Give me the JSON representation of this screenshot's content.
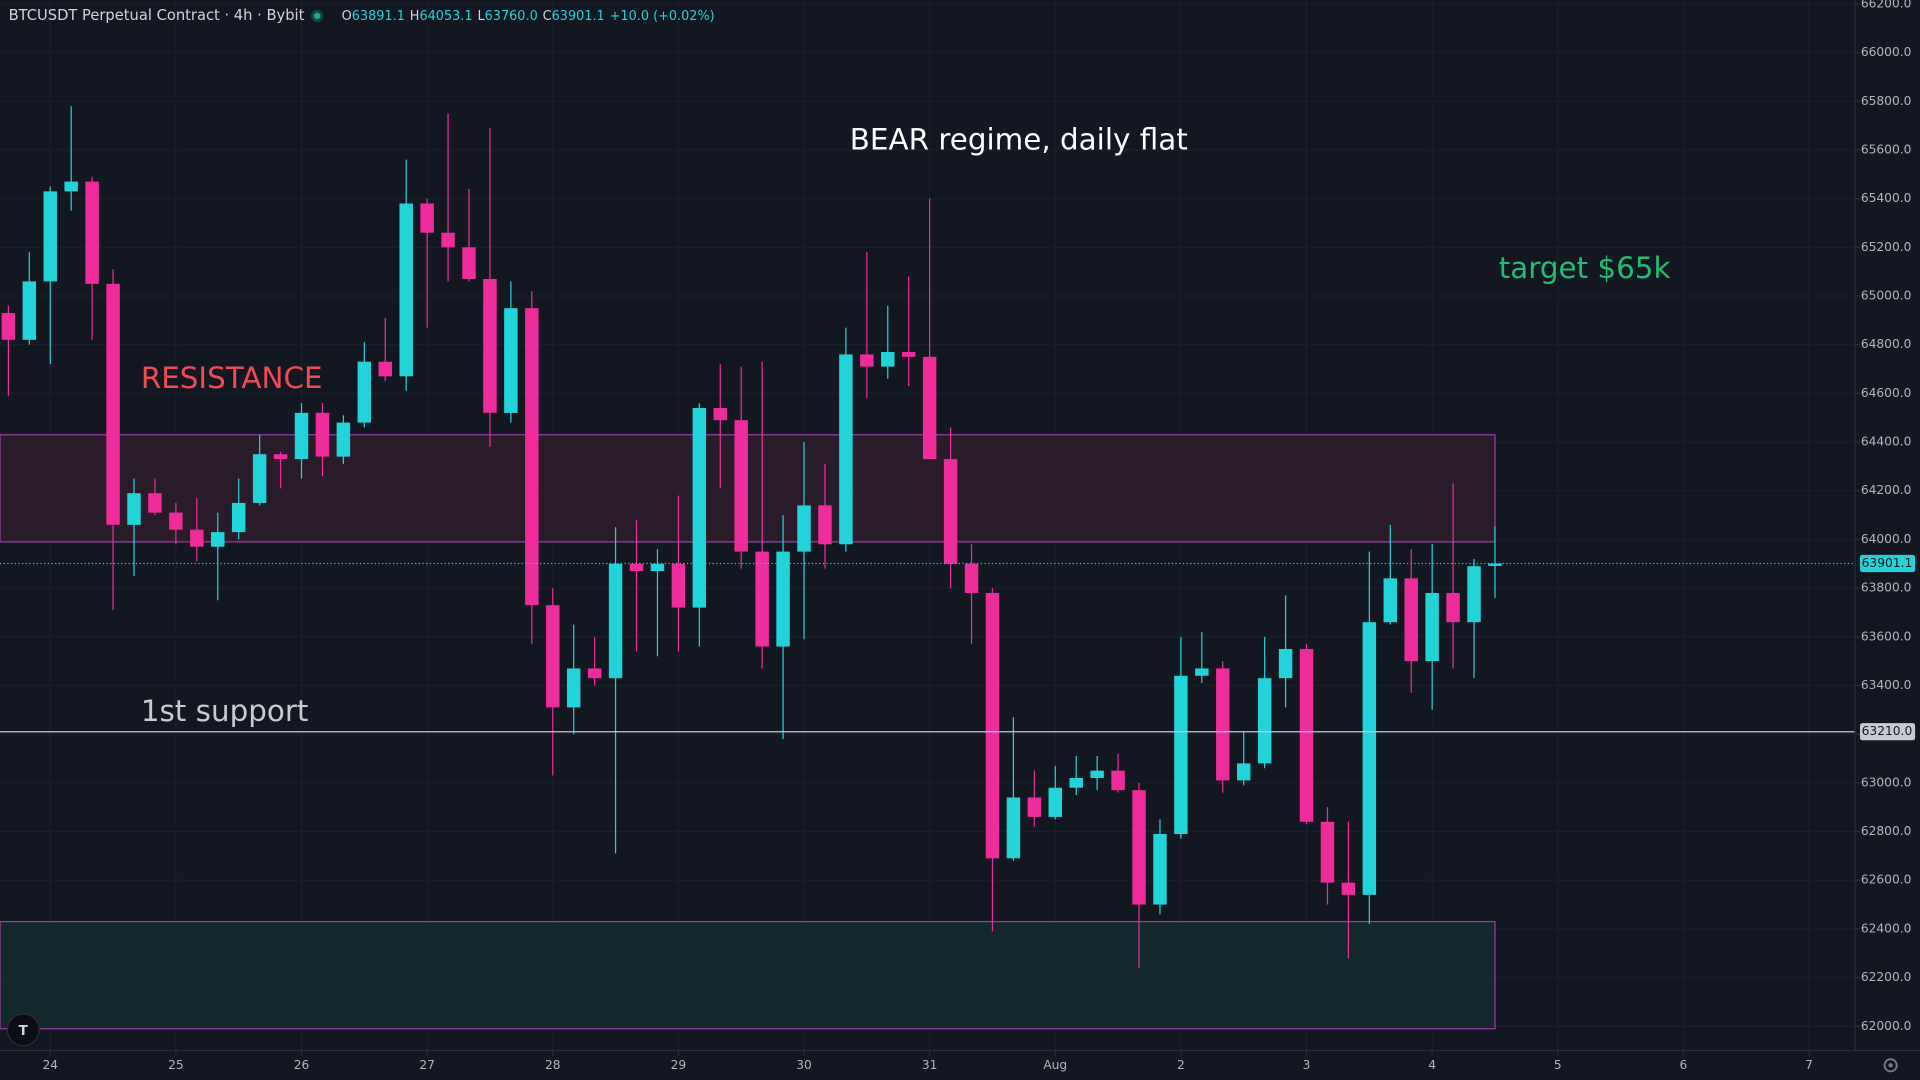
{
  "chart_data": {
    "type": "candlestick",
    "title": "BTCUSDT Perpetual Contract · 4h · Bybit",
    "header": {
      "items": [
        {
          "key": "O",
          "value": "63891.1"
        },
        {
          "key": "H",
          "value": "64053.1"
        },
        {
          "key": "L",
          "value": "63760.0"
        },
        {
          "key": "C",
          "value": "63901.1"
        }
      ],
      "change": "+10.0 (+0.02%)"
    },
    "up_color": "#22d3da",
    "down_color": "#ee2c9c",
    "grid": true,
    "x": [
      -8,
      -4,
      0,
      4,
      8,
      12,
      16,
      20,
      24,
      28,
      32,
      36,
      40,
      44,
      48,
      52,
      56,
      60,
      64,
      68,
      72,
      76,
      80,
      84,
      88,
      92,
      96,
      100,
      104,
      108,
      112,
      116,
      120,
      124,
      128,
      132,
      136,
      140,
      144,
      148,
      152,
      156,
      160,
      164,
      168,
      172,
      176,
      180,
      184,
      188,
      192,
      196,
      200,
      204,
      208,
      212,
      216,
      220,
      224,
      228,
      232,
      236,
      240,
      244,
      248,
      252,
      256,
      260,
      264,
      268,
      272,
      276
    ],
    "open": [
      64930,
      64820,
      65060,
      65430,
      65470,
      65050,
      64060,
      64190,
      64110,
      64040,
      63970,
      64030,
      64150,
      64350,
      64330,
      64520,
      64340,
      64480,
      64730,
      64670,
      65380,
      65260,
      65200,
      65070,
      64520,
      64950,
      63730,
      63310,
      63470,
      63430,
      63900,
      63870,
      63900,
      63720,
      64540,
      64490,
      63950,
      63560,
      63950,
      64140,
      63980,
      64760,
      64710,
      64770,
      64750,
      64330,
      63900,
      63780,
      62690,
      62940,
      62860,
      62980,
      63020,
      63050,
      62970,
      62500,
      62790,
      63440,
      63470,
      63010,
      63080,
      63430,
      63550,
      62840,
      62590,
      62540,
      63660,
      63840,
      63500,
      63780,
      63660,
      63891.1
    ],
    "high": [
      64960,
      65180,
      65450,
      65780,
      65490,
      65110,
      64250,
      64250,
      64150,
      64170,
      64110,
      64250,
      64430,
      64360,
      64560,
      64560,
      64510,
      64810,
      64910,
      65560,
      65400,
      65750,
      65440,
      65690,
      65060,
      65020,
      63800,
      63650,
      63600,
      64050,
      64080,
      63960,
      64180,
      64560,
      64720,
      64710,
      64730,
      64100,
      64400,
      64310,
      64870,
      65180,
      64960,
      65080,
      65400,
      64460,
      63980,
      63800,
      63270,
      63050,
      63070,
      63110,
      63110,
      63120,
      63000,
      62850,
      63600,
      63620,
      63500,
      63210,
      63600,
      63770,
      63570,
      62900,
      62840,
      63950,
      64060,
      63960,
      63980,
      64230,
      63920,
      64053.1
    ],
    "low": [
      64590,
      64800,
      64720,
      65350,
      64820,
      63710,
      63850,
      64100,
      63980,
      63910,
      63750,
      64000,
      64140,
      64210,
      64250,
      64260,
      64310,
      64460,
      64650,
      64610,
      64870,
      65060,
      65060,
      64380,
      64480,
      63570,
      63030,
      63200,
      63400,
      62710,
      63540,
      63520,
      63540,
      63560,
      64210,
      63880,
      63470,
      63180,
      63590,
      63880,
      63950,
      64580,
      64660,
      64630,
      64330,
      63800,
      63570,
      62390,
      62680,
      62820,
      62850,
      62950,
      62970,
      62960,
      62240,
      62460,
      62770,
      63410,
      62960,
      62990,
      63060,
      63310,
      62830,
      62500,
      62280,
      62420,
      63650,
      63370,
      63300,
      63470,
      63430,
      63760
    ],
    "close": [
      64820,
      65060,
      65430,
      65470,
      65050,
      64060,
      64190,
      64110,
      64040,
      63970,
      64030,
      64150,
      64350,
      64330,
      64520,
      64340,
      64480,
      64730,
      64670,
      65380,
      65260,
      65200,
      65070,
      64520,
      64950,
      63730,
      63310,
      63470,
      63430,
      63900,
      63870,
      63900,
      63720,
      64540,
      64490,
      63950,
      63560,
      63950,
      64140,
      63980,
      64760,
      64710,
      64770,
      64750,
      64330,
      63900,
      63780,
      62690,
      62940,
      62860,
      62980,
      63020,
      63050,
      62970,
      62500,
      62790,
      63440,
      63470,
      63010,
      63080,
      63430,
      63550,
      62840,
      62590,
      62540,
      63660,
      63840,
      63500,
      63780,
      63660,
      63890,
      63901.1
    ],
    "xlim": [
      -9.6,
      344.8
    ],
    "xticks": [
      {
        "value": 0,
        "label": "24"
      },
      {
        "value": 24,
        "label": "25"
      },
      {
        "value": 48,
        "label": "26"
      },
      {
        "value": 72,
        "label": "27"
      },
      {
        "value": 96,
        "label": "28"
      },
      {
        "value": 120,
        "label": "29"
      },
      {
        "value": 144,
        "label": "30"
      },
      {
        "value": 168,
        "label": "31"
      },
      {
        "value": 192,
        "label": "Aug"
      },
      {
        "value": 216,
        "label": "2"
      },
      {
        "value": 240,
        "label": "3"
      },
      {
        "value": 264,
        "label": "4"
      },
      {
        "value": 288,
        "label": "5"
      },
      {
        "value": 312,
        "label": "6"
      },
      {
        "value": 336,
        "label": "7"
      }
    ],
    "ylim": [
      61900,
      66216
    ],
    "yticks": [
      {
        "value": 62000,
        "label": "62000.0"
      },
      {
        "value": 62200,
        "label": "62200.0"
      },
      {
        "value": 62400,
        "label": "62400.0"
      },
      {
        "value": 62600,
        "label": "62600.0"
      },
      {
        "value": 62800,
        "label": "62800.0"
      },
      {
        "value": 63000,
        "label": "63000.0"
      },
      {
        "value": 63200,
        "label": "63200.0"
      },
      {
        "value": 63400,
        "label": "63400.0"
      },
      {
        "value": 63600,
        "label": "63600.0"
      },
      {
        "value": 63800,
        "label": "63800.0"
      },
      {
        "value": 64000,
        "label": "64000.0"
      },
      {
        "value": 64200,
        "label": "64200.0"
      },
      {
        "value": 64400,
        "label": "64400.0"
      },
      {
        "value": 64600,
        "label": "64600.0"
      },
      {
        "value": 64800,
        "label": "64800.0"
      },
      {
        "value": 65000,
        "label": "65000.0"
      },
      {
        "value": 65200,
        "label": "65200.0"
      },
      {
        "value": 65400,
        "label": "65400.0"
      },
      {
        "value": 65600,
        "label": "65600.0"
      },
      {
        "value": 65800,
        "label": "65800.0"
      },
      {
        "value": 66000,
        "label": "66000.0"
      },
      {
        "value": 66200,
        "label": "66200.0"
      }
    ],
    "zones": [
      {
        "top": 64430,
        "bottom": 63990,
        "fill": "#2e1c2b",
        "stroke": "#9c3fa4"
      },
      {
        "top": 62430,
        "bottom": 61990,
        "fill": "#132a2e",
        "stroke": "#9c3fa4"
      }
    ],
    "hline": {
      "value": 63210,
      "label": "63210.0",
      "color": "#c7cad2"
    },
    "last_price": {
      "value": 63901.1,
      "label": "63901.1"
    },
    "annotations": [
      {
        "text": "RESISTANCE",
        "color": "#ef4b57"
      },
      {
        "text": "1st support",
        "color": "#c7cad2"
      },
      {
        "text": "BEAR regime, daily flat",
        "color": "#ffffff"
      },
      {
        "text": "target $65k",
        "color": "#1fbf6f"
      }
    ]
  }
}
